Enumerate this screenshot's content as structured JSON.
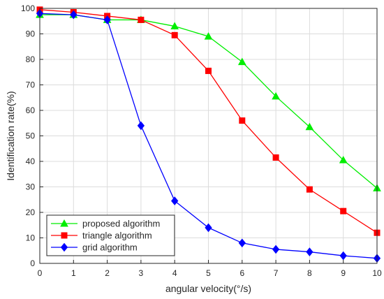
{
  "chart_data": {
    "type": "line",
    "title": "",
    "xlabel": "angular velocity(°/s)",
    "ylabel": "Identification rate(%)",
    "xlim": [
      0,
      10
    ],
    "ylim": [
      0,
      100
    ],
    "x": [
      0,
      1,
      2,
      3,
      4,
      5,
      6,
      7,
      8,
      9,
      10
    ],
    "xticks": [
      "0",
      "1",
      "2",
      "3",
      "4",
      "5",
      "6",
      "7",
      "8",
      "9",
      "10"
    ],
    "yticks": [
      "0",
      "10",
      "20",
      "30",
      "40",
      "50",
      "60",
      "70",
      "80",
      "90",
      "100"
    ],
    "grid": true,
    "legend_position": "bottom-left",
    "series": [
      {
        "name": "proposed algorithm",
        "color": "#00ee00",
        "marker": "triangle",
        "values": [
          97.5,
          97.5,
          95.5,
          95.5,
          93,
          89,
          79,
          65.5,
          53.5,
          40.5,
          29.5
        ]
      },
      {
        "name": "triangle algorithm",
        "color": "#ff0000",
        "marker": "square",
        "values": [
          99.5,
          98.5,
          97,
          95.5,
          89.5,
          75.5,
          56,
          41.5,
          29,
          20.5,
          12
        ]
      },
      {
        "name": "grid algorithm",
        "color": "#0000ff",
        "marker": "diamond",
        "values": [
          98,
          97.5,
          95.5,
          54,
          24.5,
          14,
          8,
          5.5,
          4.5,
          3,
          2
        ]
      }
    ]
  }
}
